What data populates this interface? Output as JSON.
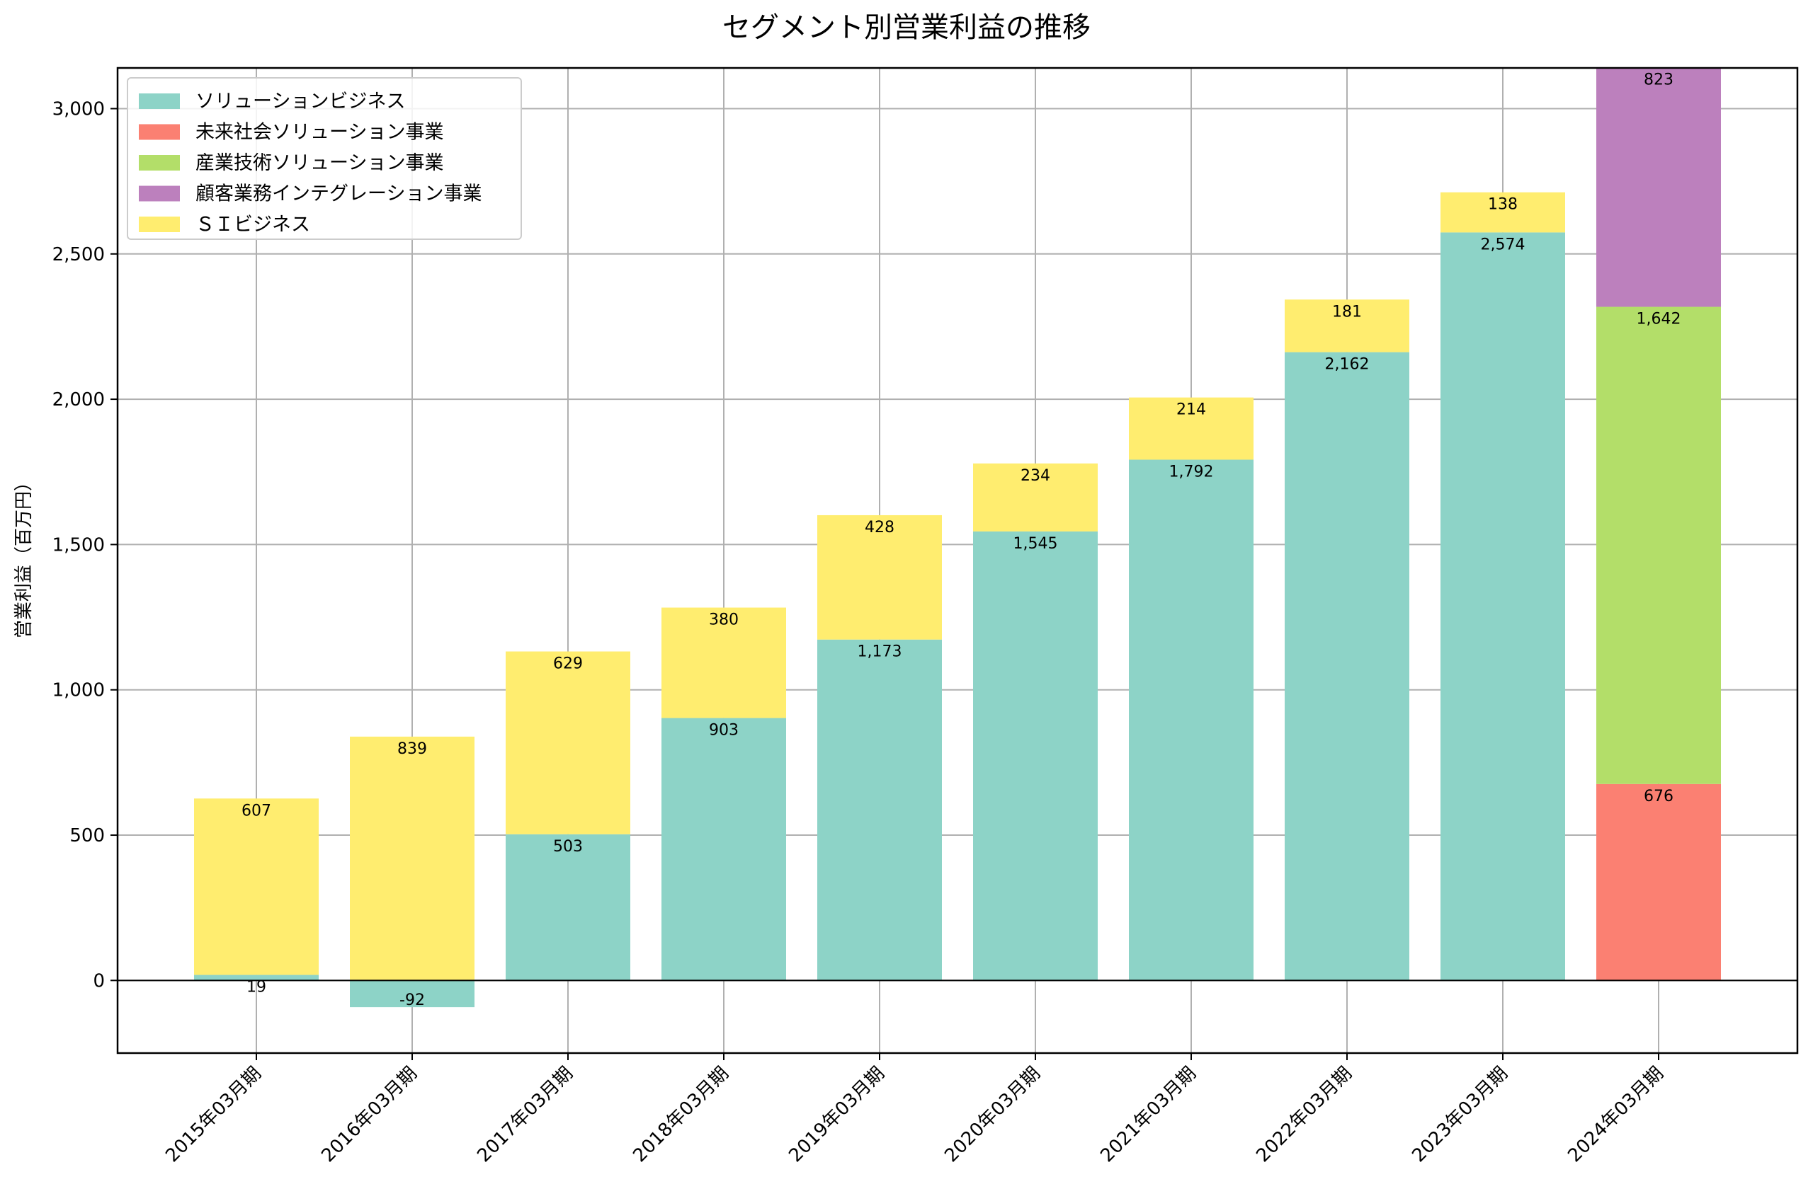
{
  "chart_data": {
    "type": "bar",
    "stacked": true,
    "title": "セグメント別営業利益の推移",
    "xlabel": "",
    "ylabel": "営業利益（百万円）",
    "ylim": [
      -250,
      3140
    ],
    "yticks": [
      0,
      500,
      1000,
      1500,
      2000,
      2500,
      3000
    ],
    "ytick_labels": [
      "0",
      "500",
      "1,000",
      "1,500",
      "2,000",
      "2,500",
      "3,000"
    ],
    "grid": true,
    "legend_position": "top-left",
    "categories": [
      "2015年03月期",
      "2016年03月期",
      "2017年03月期",
      "2018年03月期",
      "2019年03月期",
      "2020年03月期",
      "2021年03月期",
      "2022年03月期",
      "2023年03月期",
      "2024年03月期"
    ],
    "series": [
      {
        "name": "ソリューションビジネス",
        "color": "#8dd3c7",
        "values": [
          19,
          -92,
          503,
          903,
          1173,
          1545,
          1792,
          2162,
          2574,
          null
        ]
      },
      {
        "name": "未来社会ソリューション事業",
        "color": "#fb8072",
        "values": [
          null,
          null,
          null,
          null,
          null,
          null,
          null,
          null,
          null,
          676
        ]
      },
      {
        "name": "産業技術ソリューション事業",
        "color": "#b3de69",
        "values": [
          null,
          null,
          null,
          null,
          null,
          null,
          null,
          null,
          null,
          1642
        ]
      },
      {
        "name": "顧客業務インテグレーション事業",
        "color": "#bc80bd",
        "values": [
          null,
          null,
          null,
          null,
          null,
          null,
          null,
          null,
          null,
          823
        ]
      },
      {
        "name": "ＳＩビジネス",
        "color": "#ffed6f",
        "values": [
          607,
          839,
          629,
          380,
          428,
          234,
          214,
          181,
          138,
          null
        ]
      }
    ]
  }
}
